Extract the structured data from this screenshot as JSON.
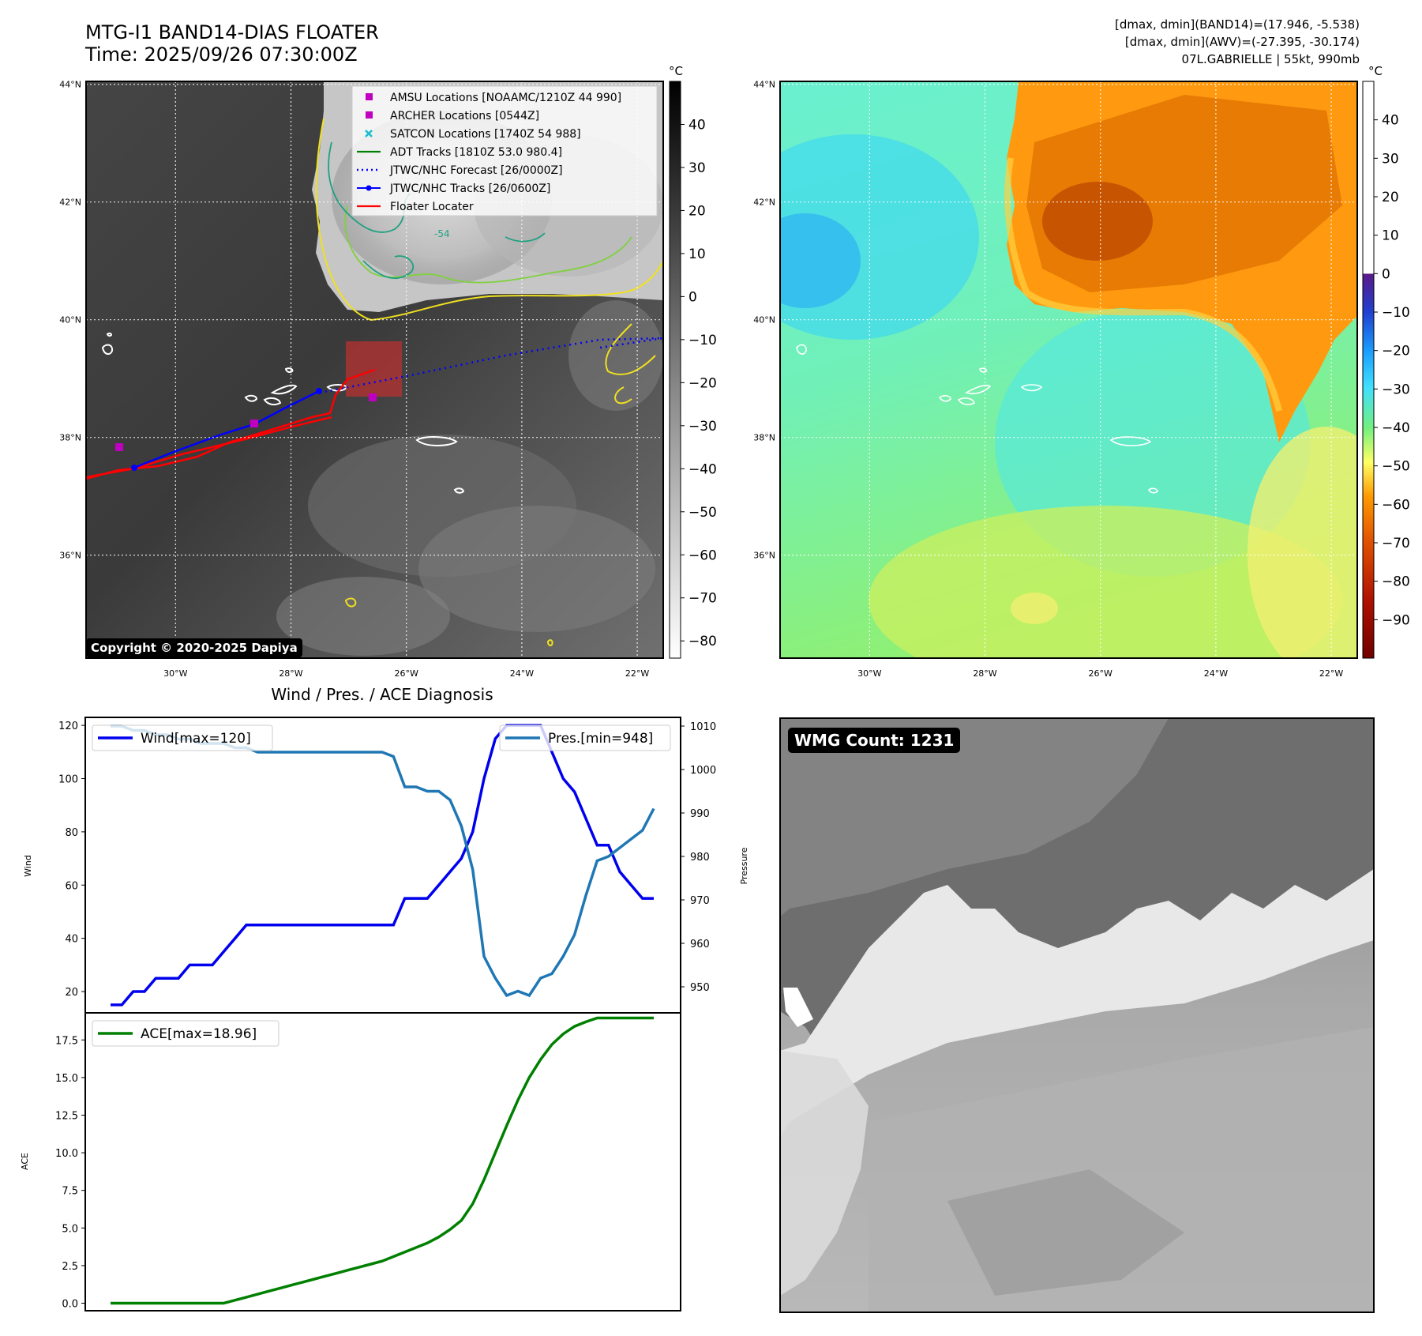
{
  "header": {
    "title_line1": "MTG-I1 BAND14-DIAS FLOATER",
    "title_line2": "Time: 2025/09/26 07:30:00Z",
    "info_line1": "[dmax, dmin](BAND14)=(17.946, -5.538)",
    "info_line2": "[dmax, dmin](AWV)=(-27.395, -30.174)",
    "info_line3": "07L.GABRIELLE | 55kt, 990mb"
  },
  "maps": {
    "lat_labels": [
      "44°N",
      "42°N",
      "40°N",
      "38°N",
      "36°N"
    ],
    "lat_values": [
      44,
      42,
      40,
      38,
      36
    ],
    "lon_labels": [
      "30°W",
      "28°W",
      "26°W",
      "24°W",
      "22°W"
    ],
    "lon_values": [
      -30,
      -28,
      -26,
      -24,
      -22
    ],
    "extent": {
      "lon_min": -31.55,
      "lon_max": -21.55,
      "lat_min": 34.25,
      "lat_max": 44.05
    },
    "copyright": "Copyright © 2020-2025 Dapiya",
    "colorbar_unit": "°C",
    "left_colorbar_ticks": [
      40,
      30,
      20,
      10,
      0,
      -10,
      -20,
      -30,
      -40,
      -50,
      -60,
      -70,
      -80
    ],
    "left_colorbar_tick_labels": [
      "40",
      "30",
      "20",
      "10",
      "0",
      "−10",
      "−20",
      "−30",
      "−40",
      "−50",
      "−60",
      "−70",
      "−80"
    ],
    "left_colorbar_range": [
      -84,
      50
    ],
    "right_colorbar_ticks": [
      40,
      30,
      20,
      10,
      0,
      -10,
      -20,
      -30,
      -40,
      -50,
      -60,
      -70,
      -80,
      -90
    ],
    "right_colorbar_tick_labels": [
      "40",
      "30",
      "20",
      "10",
      "0",
      "−10",
      "−20",
      "−30",
      "−40",
      "−50",
      "−60",
      "−70",
      "−80",
      "−90"
    ],
    "right_colorbar_range": [
      -100,
      50
    ],
    "legend": [
      {
        "label": "AMSU Locations [NOAAMC/1210Z 44 990]",
        "marker": "square",
        "color": "#c000c0"
      },
      {
        "label": "ARCHER Locations [0544Z]",
        "marker": "square",
        "color": "#c000c0"
      },
      {
        "label": "SATCON Locations [1740Z 54 988]",
        "marker": "x",
        "color": "#17becf"
      },
      {
        "label": "ADT Tracks [1810Z 53.0 980.4]",
        "marker": "line",
        "color": "#008000"
      },
      {
        "label": "JTWC/NHC Forecast [26/0000Z]",
        "marker": "dotted",
        "color": "#0000ff"
      },
      {
        "label": "JTWC/NHC Tracks [26/0600Z]",
        "marker": "line-dot",
        "color": "#0000ff"
      },
      {
        "label": "Floater Locater",
        "marker": "line",
        "color": "#ff0000"
      }
    ],
    "contour_label": "-54"
  },
  "chart_data": [
    {
      "type": "line",
      "title": "Wind / Pres. / ACE Diagnosis",
      "ylabel": "Wind",
      "ylabel2": "Pressure",
      "ylim": [
        12,
        123
      ],
      "y2lim": [
        944,
        1012
      ],
      "yticks": [
        20,
        40,
        60,
        80,
        100,
        120
      ],
      "y2ticks": [
        950,
        960,
        970,
        980,
        990,
        1000,
        1010
      ],
      "series": [
        {
          "name": "Wind[max=120]",
          "axis": "left",
          "color": "#0000ee",
          "values": [
            15,
            15,
            20,
            20,
            25,
            25,
            25,
            30,
            30,
            30,
            35,
            40,
            45,
            45,
            45,
            45,
            45,
            45,
            45,
            45,
            45,
            45,
            45,
            45,
            45,
            45,
            55,
            55,
            55,
            60,
            65,
            70,
            80,
            100,
            115,
            120,
            120,
            120,
            120,
            110,
            100,
            95,
            85,
            75,
            75,
            65,
            60,
            55,
            55
          ]
        },
        {
          "name": "Pres.[min=948]",
          "axis": "right",
          "color": "#1f77b4",
          "values": [
            1010,
            1010,
            1009,
            1009,
            1008,
            1008,
            1007,
            1007,
            1006,
            1006,
            1006,
            1005,
            1005,
            1004,
            1004,
            1004,
            1004,
            1004,
            1004,
            1004,
            1004,
            1004,
            1004,
            1004,
            1004,
            1003,
            996,
            996,
            995,
            995,
            993,
            987,
            977,
            957,
            952,
            948,
            949,
            948,
            952,
            953,
            957,
            962,
            971,
            979,
            980,
            982,
            984,
            986,
            991
          ]
        }
      ]
    },
    {
      "type": "line",
      "ylabel": "ACE",
      "ylim": [
        -0.5,
        19.3
      ],
      "yticks": [
        0.0,
        2.5,
        5.0,
        7.5,
        10.0,
        12.5,
        15.0,
        17.5
      ],
      "ytick_labels": [
        "0.0",
        "2.5",
        "5.0",
        "7.5",
        "10.0",
        "12.5",
        "15.0",
        "17.5"
      ],
      "series": [
        {
          "name": "ACE[max=18.96]",
          "color": "#008000",
          "values": [
            0,
            0,
            0,
            0,
            0,
            0,
            0,
            0,
            0,
            0,
            0,
            0.2,
            0.4,
            0.6,
            0.8,
            1.0,
            1.2,
            1.4,
            1.6,
            1.8,
            2.0,
            2.2,
            2.4,
            2.6,
            2.8,
            3.1,
            3.4,
            3.7,
            4.0,
            4.4,
            4.9,
            5.5,
            6.6,
            8.2,
            10.0,
            11.8,
            13.5,
            15.0,
            16.2,
            17.2,
            17.9,
            18.4,
            18.7,
            18.96,
            18.96,
            18.96,
            18.96,
            18.96,
            18.96
          ]
        }
      ]
    }
  ],
  "wmg": {
    "count_label": "WMG Count: 1231"
  }
}
